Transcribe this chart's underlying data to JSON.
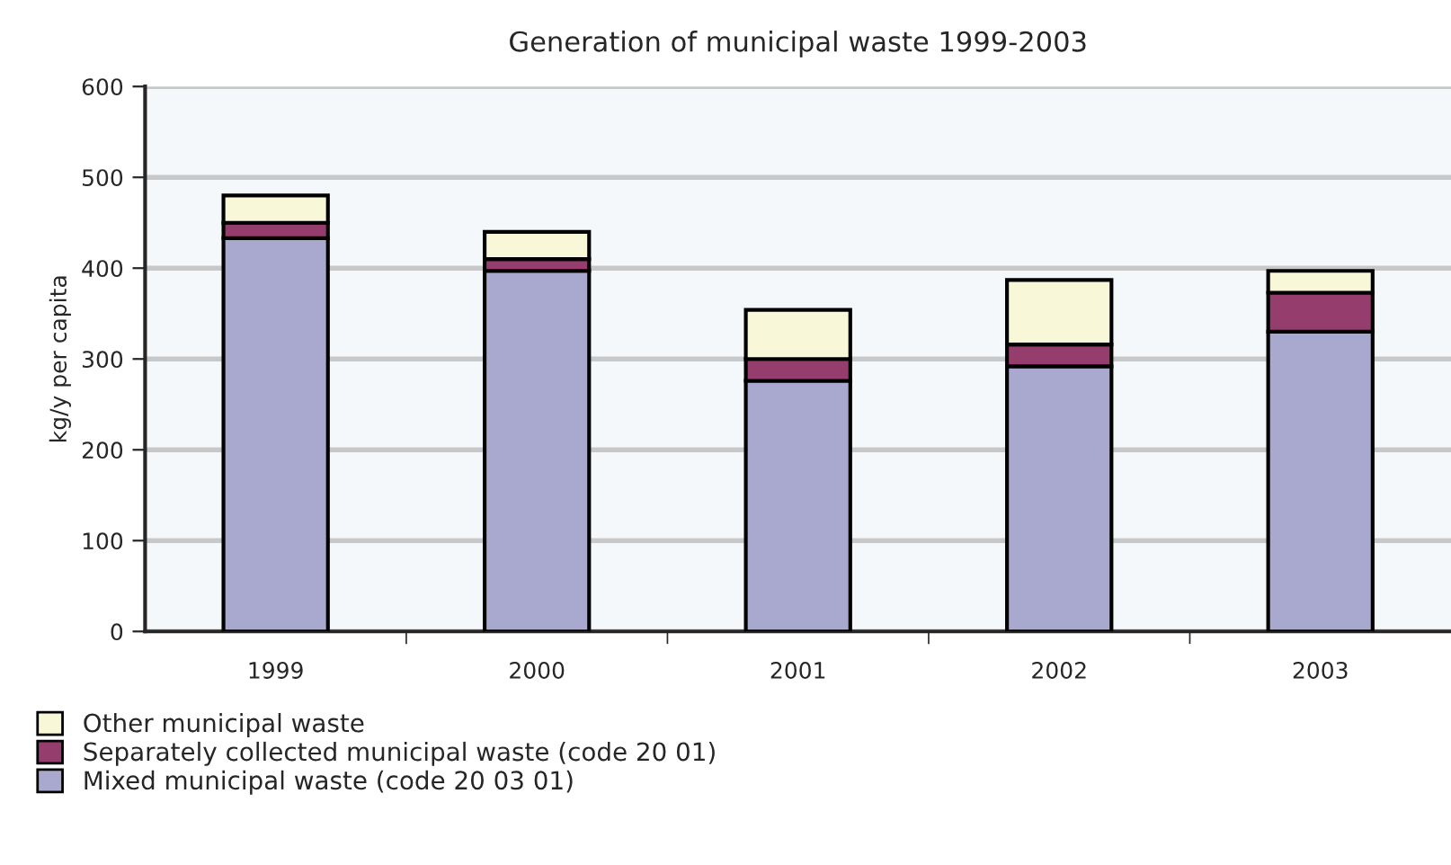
{
  "chart_data": {
    "type": "bar",
    "stacked": true,
    "title": "Generation of municipal waste 1999-2003",
    "ylabel": "kg/y per capita",
    "categories": [
      "1999",
      "2000",
      "2001",
      "2002",
      "2003"
    ],
    "series": [
      {
        "name": "Mixed municipal waste (code 20 03 01)",
        "color": "#a9a8ce",
        "values": [
          433,
          397,
          276,
          292,
          330
        ]
      },
      {
        "name": "Separately collected municipal waste (code 20 01)",
        "color": "#953e6e",
        "values": [
          17,
          13,
          24,
          24,
          43
        ]
      },
      {
        "name": "Other municipal waste",
        "color": "#f8f8d8",
        "values": [
          30,
          30,
          54,
          71,
          24
        ]
      }
    ],
    "ylim": [
      0,
      600
    ],
    "yticks": [
      0,
      100,
      200,
      300,
      400,
      500,
      600
    ],
    "grid": "y",
    "legend": "bottom"
  }
}
